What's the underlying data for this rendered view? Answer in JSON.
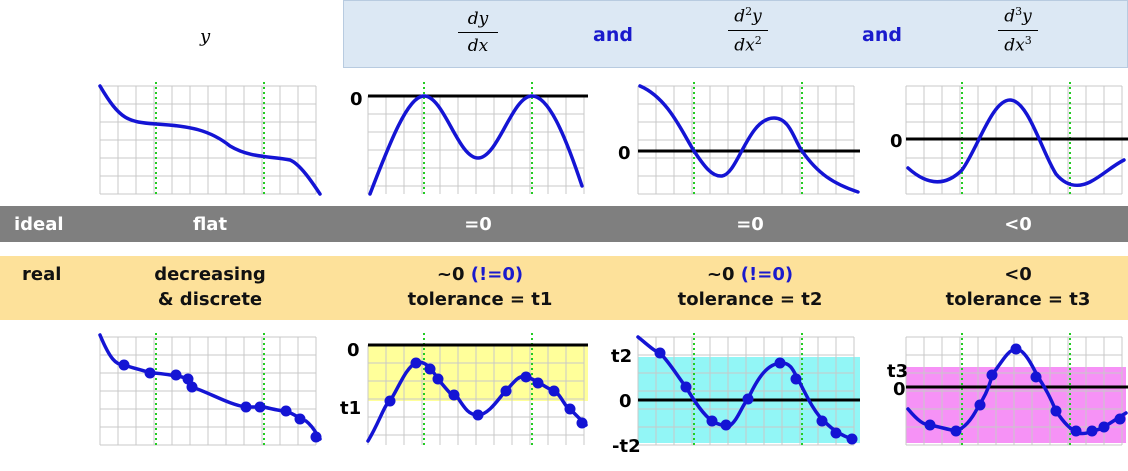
{
  "header": {
    "y_label": "y",
    "d1": {
      "num": "dy",
      "den": "dx"
    },
    "d2": {
      "num": "d",
      "num_sup": "2",
      "num_tail": "y",
      "den": "dx",
      "den_sup": "2"
    },
    "d3": {
      "num": "d",
      "num_sup": "3",
      "num_tail": "y",
      "den": "dx",
      "den_sup": "3"
    },
    "and_1": "and",
    "and_2": "and"
  },
  "ideal": {
    "row_label": "ideal",
    "y": "flat",
    "d1": "=0",
    "d2": "=0",
    "d3": "<0"
  },
  "real": {
    "row_label": "real",
    "y_line1": "decreasing",
    "y_line2": "& discrete",
    "d1_line1_a": "~0 ",
    "d1_line1_b": "(!=0)",
    "d1_line2": "tolerance = t1",
    "d2_line1_a": "~0 ",
    "d2_line1_b": "(!=0)",
    "d2_line2": "tolerance = t2",
    "d3_line1": "<0",
    "d3_line2": "tolerance = t3"
  },
  "axis_labels": {
    "d1_top_zero": "0",
    "d2_top_zero": "0",
    "d3_top_zero": "0",
    "d1_bot_zero": "0",
    "d1_bot_t1": "t1",
    "d2_bot_t2": "t2",
    "d2_bot_zero": "0",
    "d2_bot_neg_t2": "-t2",
    "d3_bot_t3": "t3",
    "d3_bot_zero": "0"
  },
  "colors": {
    "curve": "#1414d4",
    "dotted": "#22cc22",
    "grid": "#c8c8c8",
    "tol_t1": "#ffff88",
    "tol_t2": "#7ff5f5",
    "tol_t3": "#f57ff5",
    "header_box": "#dce8f4",
    "ideal_band": "#7f7f7f",
    "real_band": "#fde19a"
  }
}
